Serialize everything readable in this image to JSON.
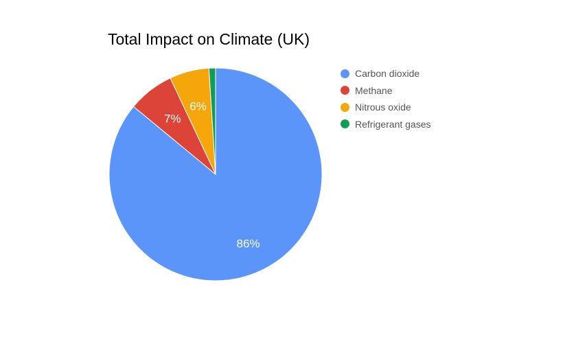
{
  "chart_data": {
    "type": "pie",
    "title": "Total Impact on Climate (UK)",
    "slices": [
      {
        "name": "Carbon dioxide",
        "value": 86,
        "label": "86%",
        "color": "#5b95f9"
      },
      {
        "name": "Methane",
        "value": 7,
        "label": "7%",
        "color": "#dc4437"
      },
      {
        "name": "Nitrous oxide",
        "value": 6,
        "label": "6%",
        "color": "#f4a60b"
      },
      {
        "name": "Refrigerant gases",
        "value": 1,
        "label": "",
        "color": "#0f9d58"
      }
    ],
    "legend_position": "right"
  }
}
